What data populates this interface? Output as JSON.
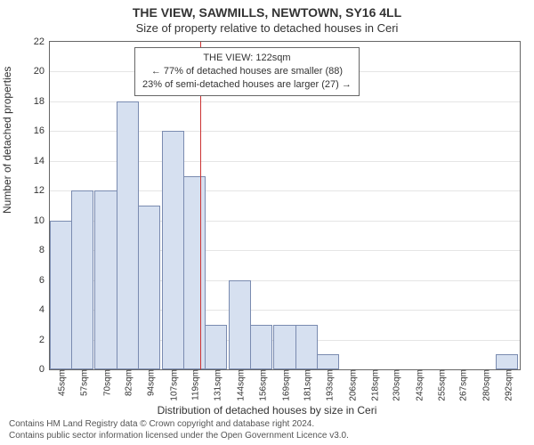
{
  "chart": {
    "type": "histogram",
    "title_main": "THE VIEW, SAWMILLS, NEWTOWN, SY16 4LL",
    "title_sub": "Size of property relative to detached houses in Ceri",
    "title_main_fontsize": 14,
    "title_sub_fontsize": 13,
    "xlabel": "Distribution of detached houses by size in Ceri",
    "ylabel": "Number of detached properties",
    "label_fontsize": 12,
    "tick_fontsize": 11,
    "xtick_fontsize": 10,
    "background_color": "#ffffff",
    "plot_border_color": "#666666",
    "grid_color": "#e5e5e5",
    "bar_fill": "#d6e0f0",
    "bar_border": "#7a8bb0",
    "ref_line_color": "#cc3333",
    "xlim": [
      39,
      299
    ],
    "ylim": [
      0,
      22
    ],
    "ytick_step": 2,
    "xtick_labels": [
      "45sqm",
      "57sqm",
      "70sqm",
      "82sqm",
      "94sqm",
      "107sqm",
      "119sqm",
      "131sqm",
      "144sqm",
      "156sqm",
      "169sqm",
      "181sqm",
      "193sqm",
      "206sqm",
      "218sqm",
      "230sqm",
      "243sqm",
      "255sqm",
      "267sqm",
      "280sqm",
      "292sqm"
    ],
    "bars": [
      {
        "center": 45,
        "count": 10
      },
      {
        "center": 57,
        "count": 12
      },
      {
        "center": 70,
        "count": 12
      },
      {
        "center": 82,
        "count": 18
      },
      {
        "center": 94,
        "count": 11
      },
      {
        "center": 107,
        "count": 16
      },
      {
        "center": 119,
        "count": 13
      },
      {
        "center": 131,
        "count": 3
      },
      {
        "center": 144,
        "count": 6
      },
      {
        "center": 156,
        "count": 3
      },
      {
        "center": 169,
        "count": 3
      },
      {
        "center": 181,
        "count": 3
      },
      {
        "center": 193,
        "count": 1
      },
      {
        "center": 206,
        "count": 0
      },
      {
        "center": 218,
        "count": 0
      },
      {
        "center": 230,
        "count": 0
      },
      {
        "center": 243,
        "count": 0
      },
      {
        "center": 255,
        "count": 0
      },
      {
        "center": 267,
        "count": 0
      },
      {
        "center": 280,
        "count": 0
      },
      {
        "center": 292,
        "count": 1
      }
    ],
    "bar_width_units": 12.38,
    "reference_value": 122,
    "annotation": {
      "title": "THE VIEW: 122sqm",
      "line1": "← 77% of detached houses are smaller (88)",
      "line2": "23% of semi-detached houses are larger (27) →",
      "border_color": "#666666",
      "background": "#ffffff",
      "fontsize": 11
    },
    "footer_line1": "Contains HM Land Registry data © Crown copyright and database right 2024.",
    "footer_line2": "Contains public sector information licensed under the Open Government Licence v3.0.",
    "footer_fontsize": 10,
    "footer_color": "#555555"
  }
}
